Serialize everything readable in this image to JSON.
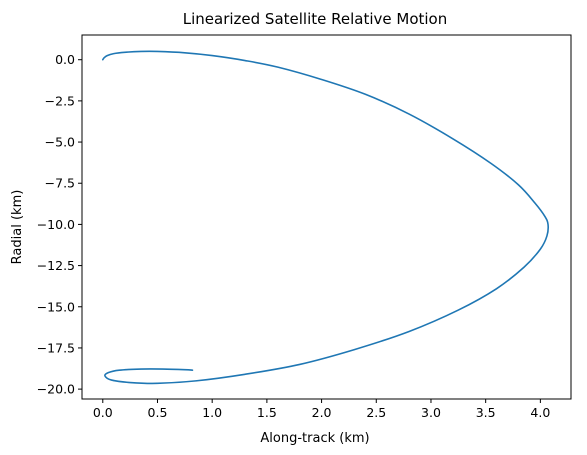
{
  "chart_data": {
    "type": "line",
    "title": "Linearized Satellite Relative Motion",
    "xlabel": "Along-track (km)",
    "ylabel": "Radial (km)",
    "xlim": [
      -0.19,
      4.28
    ],
    "ylim": [
      -20.6,
      1.5
    ],
    "grid": false,
    "legend": "none",
    "colors": {
      "series": "#1f77b4",
      "axes": "#000000",
      "background": "#ffffff"
    },
    "x_ticks": [
      0.0,
      0.5,
      1.0,
      1.5,
      2.0,
      2.5,
      3.0,
      3.5,
      4.0
    ],
    "x_tick_labels": [
      "0.0",
      "0.5",
      "1.0",
      "1.5",
      "2.0",
      "2.5",
      "3.0",
      "3.5",
      "4.0"
    ],
    "y_ticks": [
      0.0,
      -2.5,
      -5.0,
      -7.5,
      -10.0,
      -12.5,
      -15.0,
      -17.5,
      -20.0
    ],
    "y_tick_labels": [
      "0.0",
      "−2.5",
      "−5.0",
      "−7.5",
      "−10.0",
      "−12.5",
      "−15.0",
      "−17.5",
      "−20.0"
    ],
    "series": [
      {
        "x": [
          0.0,
          0.01,
          0.04,
          0.1,
          0.2,
          0.35,
          0.5,
          0.75,
          1.0,
          1.3,
          1.6,
          2.0,
          2.4,
          2.8,
          3.2,
          3.55,
          3.8,
          3.95,
          4.04,
          4.07,
          4.06,
          4.0,
          3.85,
          3.6,
          3.25,
          2.8,
          2.3,
          1.8,
          1.3,
          0.85,
          0.5,
          0.25,
          0.08,
          0.02,
          0.05,
          0.15,
          0.35,
          0.55,
          0.75,
          0.82
        ],
        "y": [
          0.0,
          0.1,
          0.25,
          0.37,
          0.45,
          0.5,
          0.5,
          0.42,
          0.25,
          -0.05,
          -0.45,
          -1.2,
          -2.1,
          -3.3,
          -4.8,
          -6.3,
          -7.6,
          -8.7,
          -9.5,
          -10.0,
          -10.7,
          -11.5,
          -12.6,
          -13.9,
          -15.2,
          -16.5,
          -17.6,
          -18.5,
          -19.1,
          -19.5,
          -19.65,
          -19.6,
          -19.45,
          -19.2,
          -19.0,
          -18.85,
          -18.78,
          -18.78,
          -18.82,
          -18.85
        ]
      }
    ]
  }
}
